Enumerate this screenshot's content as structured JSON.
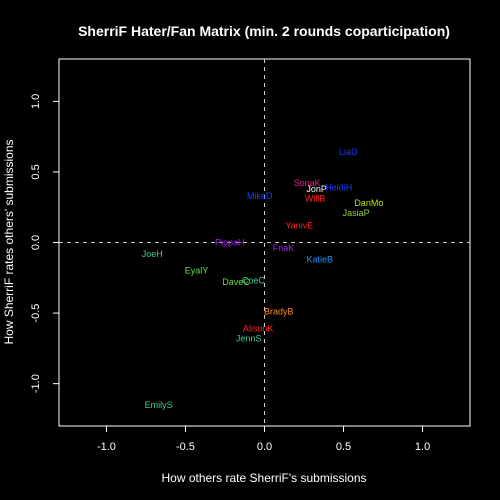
{
  "chart_data": {
    "type": "scatter",
    "title": "SherriF Hater/Fan Matrix (min. 2 rounds coparticipation)",
    "xlabel": "How others rate SherriF's submissions",
    "ylabel": "How SherriF rates others' submissions",
    "xlim": [
      -1.3,
      1.3
    ],
    "ylim": [
      -1.3,
      1.3
    ],
    "x_ticks": [
      -1.0,
      -0.5,
      0.0,
      0.5,
      1.0
    ],
    "y_ticks": [
      -1.0,
      -0.5,
      0.0,
      0.5,
      1.0
    ],
    "x_tick_labels": [
      "-1.0",
      "-0.5",
      "0.0",
      "0.5",
      "1.0"
    ],
    "y_tick_labels": [
      "-1.0",
      "-0.5",
      "0.0",
      "0.5",
      "1.0"
    ],
    "reference_lines": {
      "x": 0,
      "y": 0,
      "style": "dashed"
    },
    "grid": false,
    "points": [
      {
        "label": "LiaD",
        "x": 0.53,
        "y": 0.64,
        "color": "#1f3cff"
      },
      {
        "label": "SonaK",
        "x": 0.27,
        "y": 0.42,
        "color": "#e0218a"
      },
      {
        "label": "JonP",
        "x": 0.33,
        "y": 0.38,
        "color": "#ffffff"
      },
      {
        "label": "HeidiH",
        "x": 0.47,
        "y": 0.39,
        "color": "#1f3cff"
      },
      {
        "label": "MikeD",
        "x": -0.03,
        "y": 0.33,
        "color": "#1f3cff"
      },
      {
        "label": "WillB",
        "x": 0.32,
        "y": 0.31,
        "color": "#ff2020"
      },
      {
        "label": "DanMo",
        "x": 0.66,
        "y": 0.28,
        "color": "#b7e81c"
      },
      {
        "label": "JasiaP",
        "x": 0.58,
        "y": 0.21,
        "color": "#8cd03c"
      },
      {
        "label": "YanivE",
        "x": 0.22,
        "y": 0.12,
        "color": "#ff2020"
      },
      {
        "label": "PippaH",
        "x": -0.22,
        "y": 0.0,
        "color": "#a020f0"
      },
      {
        "label": "FnaK",
        "x": 0.12,
        "y": -0.04,
        "color": "#a020f0"
      },
      {
        "label": "JoeH",
        "x": -0.71,
        "y": -0.08,
        "color": "#3ccf8e"
      },
      {
        "label": "KatieB",
        "x": 0.35,
        "y": -0.12,
        "color": "#1e90ff"
      },
      {
        "label": "EyalY",
        "x": -0.43,
        "y": -0.2,
        "color": "#66e04a"
      },
      {
        "label": "DaveC",
        "x": -0.18,
        "y": -0.28,
        "color": "#66e04a"
      },
      {
        "label": "CoeC",
        "x": -0.07,
        "y": -0.27,
        "color": "#3ccf8e"
      },
      {
        "label": "BradyB",
        "x": 0.09,
        "y": -0.49,
        "color": "#ff8c1a"
      },
      {
        "label": "AlisonK",
        "x": -0.04,
        "y": -0.61,
        "color": "#ff2020"
      },
      {
        "label": "JennS",
        "x": -0.1,
        "y": -0.68,
        "color": "#3ccf8e"
      },
      {
        "label": "EmilyS",
        "x": -0.67,
        "y": -1.15,
        "color": "#3ccf8e"
      }
    ]
  }
}
